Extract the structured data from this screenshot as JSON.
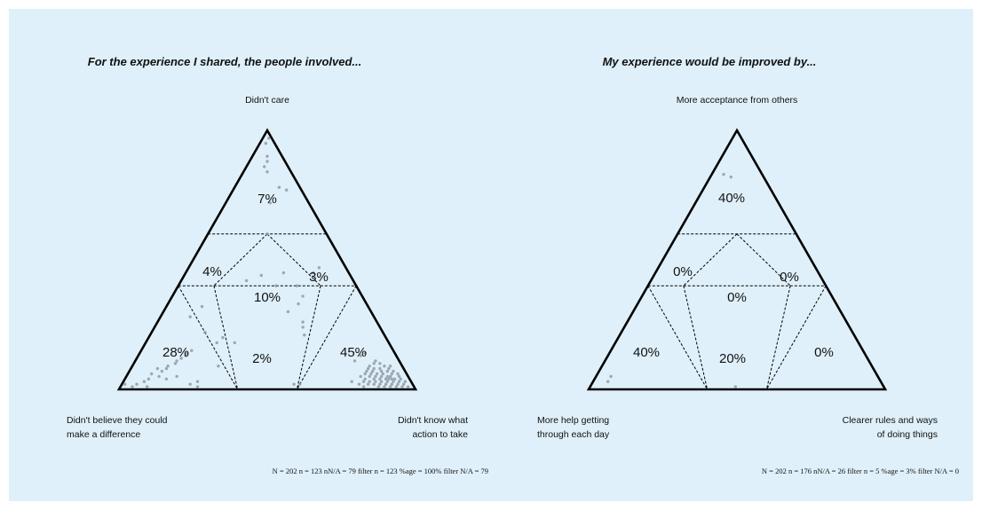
{
  "chart_data": [
    {
      "type": "triad",
      "title": "For the experience I shared, the people involved...",
      "corners": {
        "top": [
          "Didn't care"
        ],
        "left": [
          "Didn't believe they could",
          "make a difference"
        ],
        "right": [
          "Didn't know what",
          "action to take"
        ]
      },
      "regions": {
        "top": "7%",
        "upper_left": "4%",
        "center": "10%",
        "upper_right": "3%",
        "bottom_left": "28%",
        "bottom_center": "2%",
        "bottom_right": "45%"
      },
      "stats": "N = 202 n = 123  nN/A = 79  filter n = 123  %age = 100%  filter N/A = 79",
      "points": [
        [
          0.97,
          0.01,
          0.02
        ],
        [
          0.95,
          0.03,
          0.02
        ],
        [
          0.9,
          0.05,
          0.05
        ],
        [
          0.88,
          0.06,
          0.06
        ],
        [
          0.86,
          0.08,
          0.06
        ],
        [
          0.84,
          0.08,
          0.08
        ],
        [
          0.78,
          0.07,
          0.15
        ],
        [
          0.77,
          0.05,
          0.18
        ],
        [
          0.72,
          0.13,
          0.15
        ],
        [
          0.6,
          0.2,
          0.2
        ],
        [
          0.45,
          0.22,
          0.33
        ],
        [
          0.44,
          0.3,
          0.26
        ],
        [
          0.4,
          0.2,
          0.4
        ],
        [
          0.4,
          0.27,
          0.33
        ],
        [
          0.36,
          0.2,
          0.44
        ],
        [
          0.33,
          0.23,
          0.44
        ],
        [
          0.3,
          0.28,
          0.42
        ],
        [
          0.26,
          0.25,
          0.49
        ],
        [
          0.24,
          0.26,
          0.5
        ],
        [
          0.21,
          0.27,
          0.52
        ],
        [
          0.45,
          0.12,
          0.43
        ],
        [
          0.47,
          0.09,
          0.44
        ],
        [
          0.42,
          0.36,
          0.22
        ],
        [
          0.28,
          0.62,
          0.1
        ],
        [
          0.32,
          0.56,
          0.12
        ],
        [
          0.22,
          0.6,
          0.18
        ],
        [
          0.18,
          0.58,
          0.24
        ],
        [
          0.2,
          0.55,
          0.25
        ],
        [
          0.15,
          0.68,
          0.17
        ],
        [
          0.13,
          0.71,
          0.16
        ],
        [
          0.12,
          0.73,
          0.15
        ],
        [
          0.14,
          0.7,
          0.16
        ],
        [
          0.11,
          0.75,
          0.14
        ],
        [
          0.1,
          0.76,
          0.14
        ],
        [
          0.09,
          0.79,
          0.12
        ],
        [
          0.08,
          0.8,
          0.12
        ],
        [
          0.07,
          0.82,
          0.11
        ],
        [
          0.08,
          0.83,
          0.09
        ],
        [
          0.06,
          0.86,
          0.08
        ],
        [
          0.04,
          0.88,
          0.08
        ],
        [
          0.05,
          0.84,
          0.11
        ],
        [
          0.03,
          0.9,
          0.07
        ],
        [
          0.02,
          0.93,
          0.05
        ],
        [
          0.01,
          0.95,
          0.04
        ],
        [
          0.02,
          0.97,
          0.01
        ],
        [
          0.01,
          0.9,
          0.09
        ],
        [
          0.04,
          0.82,
          0.14
        ],
        [
          0.05,
          0.78,
          0.17
        ],
        [
          0.18,
          0.52,
          0.3
        ],
        [
          0.02,
          0.75,
          0.23
        ],
        [
          0.01,
          0.73,
          0.26
        ],
        [
          0.03,
          0.72,
          0.25
        ],
        [
          0.09,
          0.62,
          0.29
        ],
        [
          0.13,
          0.12,
          0.75
        ],
        [
          0.11,
          0.15,
          0.74
        ],
        [
          0.06,
          0.1,
          0.84
        ],
        [
          0.04,
          0.06,
          0.9
        ],
        [
          0.02,
          0.4,
          0.58
        ],
        [
          0.02,
          0.38,
          0.6
        ],
        [
          0.14,
          0.1,
          0.76
        ],
        [
          0.1,
          0.09,
          0.81
        ],
        [
          0.09,
          0.11,
          0.8
        ],
        [
          0.08,
          0.08,
          0.84
        ],
        [
          0.08,
          0.1,
          0.82
        ],
        [
          0.07,
          0.08,
          0.85
        ],
        [
          0.07,
          0.11,
          0.82
        ],
        [
          0.07,
          0.06,
          0.87
        ],
        [
          0.06,
          0.08,
          0.86
        ],
        [
          0.06,
          0.12,
          0.82
        ],
        [
          0.06,
          0.05,
          0.89
        ],
        [
          0.05,
          0.09,
          0.86
        ],
        [
          0.05,
          0.07,
          0.88
        ],
        [
          0.05,
          0.11,
          0.84
        ],
        [
          0.05,
          0.06,
          0.89
        ],
        [
          0.05,
          0.13,
          0.82
        ],
        [
          0.04,
          0.08,
          0.88
        ],
        [
          0.04,
          0.1,
          0.86
        ],
        [
          0.04,
          0.05,
          0.91
        ],
        [
          0.04,
          0.12,
          0.84
        ],
        [
          0.04,
          0.07,
          0.89
        ],
        [
          0.03,
          0.08,
          0.89
        ],
        [
          0.03,
          0.1,
          0.87
        ],
        [
          0.03,
          0.06,
          0.91
        ],
        [
          0.03,
          0.12,
          0.85
        ],
        [
          0.03,
          0.04,
          0.93
        ],
        [
          0.03,
          0.14,
          0.83
        ],
        [
          0.02,
          0.07,
          0.91
        ],
        [
          0.02,
          0.09,
          0.89
        ],
        [
          0.02,
          0.05,
          0.93
        ],
        [
          0.02,
          0.11,
          0.87
        ],
        [
          0.02,
          0.13,
          0.85
        ],
        [
          0.02,
          0.03,
          0.95
        ],
        [
          0.01,
          0.06,
          0.93
        ],
        [
          0.01,
          0.08,
          0.91
        ],
        [
          0.01,
          0.1,
          0.89
        ],
        [
          0.01,
          0.04,
          0.95
        ],
        [
          0.01,
          0.12,
          0.87
        ],
        [
          0.01,
          0.02,
          0.97
        ],
        [
          0.06,
          0.14,
          0.8
        ],
        [
          0.05,
          0.16,
          0.79
        ],
        [
          0.04,
          0.15,
          0.81
        ],
        [
          0.03,
          0.16,
          0.81
        ],
        [
          0.02,
          0.15,
          0.83
        ],
        [
          0.04,
          0.03,
          0.93
        ],
        [
          0.05,
          0.03,
          0.92
        ],
        [
          0.03,
          0.02,
          0.95
        ],
        [
          0.07,
          0.13,
          0.8
        ],
        [
          0.08,
          0.12,
          0.8
        ],
        [
          0.09,
          0.06,
          0.85
        ],
        [
          0.1,
          0.07,
          0.83
        ],
        [
          0.11,
          0.08,
          0.81
        ],
        [
          0.06,
          0.03,
          0.91
        ],
        [
          0.07,
          0.04,
          0.89
        ],
        [
          0.08,
          0.05,
          0.87
        ],
        [
          0.09,
          0.04,
          0.87
        ],
        [
          0.02,
          0.18,
          0.8
        ],
        [
          0.03,
          0.2,
          0.77
        ],
        [
          0.01,
          0.17,
          0.82
        ]
      ]
    },
    {
      "type": "triad",
      "title": "My experience would be improved by...",
      "corners": {
        "top": [
          "More acceptance from others"
        ],
        "left": [
          "More help getting",
          "through each day"
        ],
        "right": [
          "Clearer rules and ways",
          "of doing things"
        ]
      },
      "regions": {
        "top": "40%",
        "upper_left": "0%",
        "center": "0%",
        "upper_right": "0%",
        "bottom_left": "40%",
        "bottom_center": "20%",
        "bottom_right": "0%"
      },
      "stats": "N = 202 n = 176  nN/A = 26  filter n = 5  %age = 3%  filter N/A = 0",
      "points": [
        [
          0.83,
          0.13,
          0.04
        ],
        [
          0.82,
          0.11,
          0.07
        ],
        [
          0.05,
          0.9,
          0.05
        ],
        [
          0.03,
          0.92,
          0.05
        ],
        [
          0.01,
          0.5,
          0.49
        ]
      ]
    }
  ]
}
